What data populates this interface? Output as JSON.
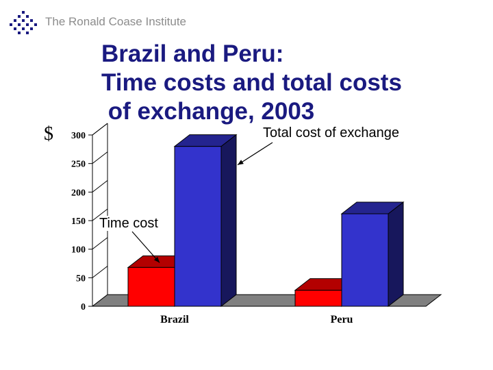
{
  "header": {
    "org_name": "The Ronald Coase Institute",
    "logo_icon": "diamond-dot-grid-icon"
  },
  "slide": {
    "title_lines": [
      "Brazil and Peru:",
      "Time costs and total costs",
      " of exchange, 2003"
    ],
    "currency_label": "$"
  },
  "annotations": {
    "total_cost": "Total cost of exchange",
    "time_cost": "Time cost"
  },
  "colors": {
    "title": "#1a1a80",
    "time_cost_series": "#ff0000",
    "total_cost_series": "#3333cc",
    "floor": "#808080"
  },
  "chart_data": {
    "type": "bar",
    "style": "3d-clustered",
    "categories": [
      "Brazil",
      "Peru"
    ],
    "series": [
      {
        "name": "Time cost",
        "values": [
          68,
          28
        ]
      },
      {
        "name": "Total cost of exchange",
        "values": [
          280,
          162
        ]
      }
    ],
    "yticks": [
      0,
      50,
      100,
      150,
      200,
      250,
      300
    ],
    "ylim": [
      0,
      300
    ],
    "ylabel": "$",
    "grid": false,
    "legend": "none"
  }
}
